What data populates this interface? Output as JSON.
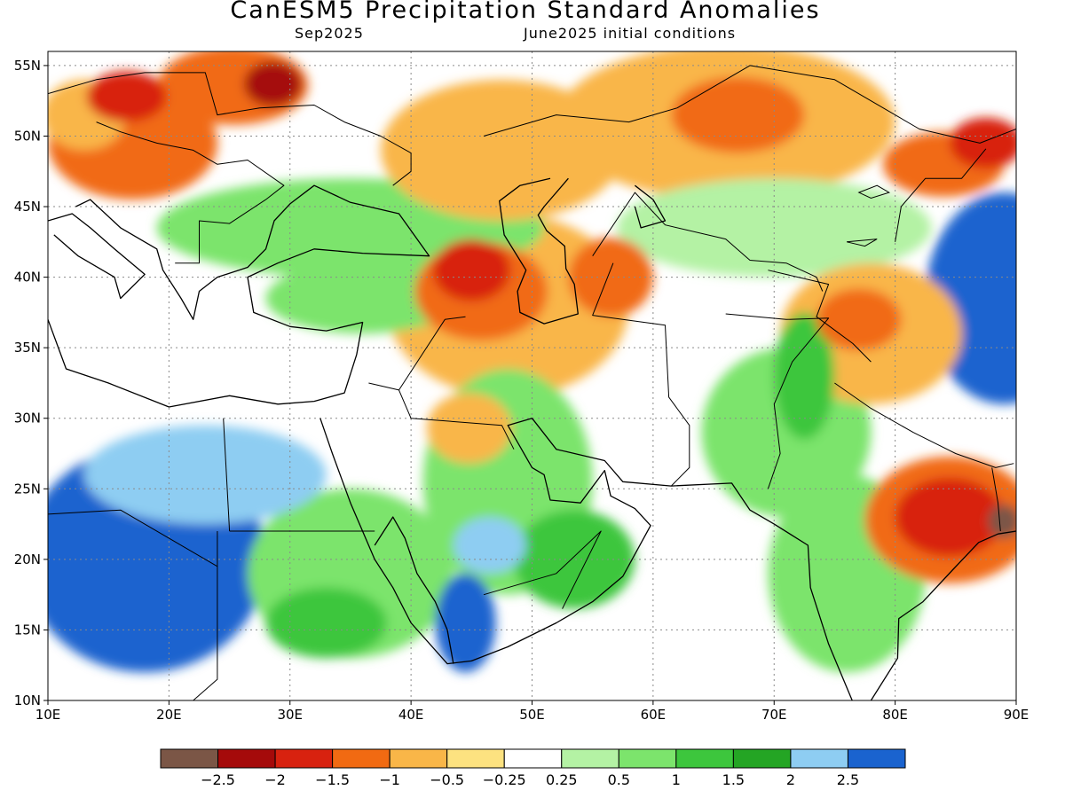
{
  "header": {
    "title": "CanESM5 Precipitation Standard Anomalies",
    "valid_month": "Sep2025",
    "init": "June2025 initial conditions"
  },
  "axes": {
    "lon_ticks": [
      "10E",
      "20E",
      "30E",
      "40E",
      "50E",
      "60E",
      "70E",
      "80E",
      "90E"
    ],
    "lat_ticks": [
      "10N",
      "15N",
      "20N",
      "25N",
      "30N",
      "35N",
      "40N",
      "45N",
      "50N",
      "55N"
    ],
    "lon_range": [
      10,
      90
    ],
    "lat_range": [
      10,
      56
    ]
  },
  "colorbar": {
    "labels": [
      "−2.5",
      "−2",
      "−1.5",
      "−1",
      "−0.5",
      "−0.25",
      "0.25",
      "0.5",
      "1",
      "1.5",
      "2",
      "2.5"
    ],
    "colors": [
      "#7b5646",
      "#a50a0a",
      "#d8220f",
      "#f16a12",
      "#f9b648",
      "#fde280",
      "#ffffff",
      "#b4f2a4",
      "#7ce46c",
      "#3dc63d",
      "#24a524",
      "#8ecdf2",
      "#1a63cf"
    ]
  },
  "map": {
    "anomaly_regions": [
      {
        "lon": 25.3,
        "lat": 53.6,
        "rx": 6.2,
        "ry": 2.8,
        "color": "#f16a12"
      },
      {
        "lon": 28.6,
        "lat": 53.7,
        "rx": 2.4,
        "ry": 1.6,
        "color": "#a50a0a"
      },
      {
        "lon": 16.5,
        "lat": 52.8,
        "rx": 3.3,
        "ry": 1.8,
        "color": "#d8220f"
      },
      {
        "lon": 17.0,
        "lat": 49.5,
        "rx": 7.0,
        "ry": 4.0,
        "color": "#f16a12"
      },
      {
        "lon": 13.0,
        "lat": 51.5,
        "rx": 3.5,
        "ry": 2.5,
        "color": "#f9b648"
      },
      {
        "lon": 45.0,
        "lat": 40.5,
        "rx": 3.2,
        "ry": 2.2,
        "color": "#d8220f"
      },
      {
        "lon": 45.8,
        "lat": 39.0,
        "rx": 5.5,
        "ry": 3.5,
        "color": "#f16a12"
      },
      {
        "lon": 48.0,
        "lat": 38.0,
        "rx": 10.0,
        "ry": 6.5,
        "color": "#f9b648"
      },
      {
        "lon": 56.5,
        "lat": 40.0,
        "rx": 3.5,
        "ry": 2.8,
        "color": "#f16a12"
      },
      {
        "lon": 44.8,
        "lat": 29.3,
        "rx": 3.5,
        "ry": 2.5,
        "color": "#f9b648"
      },
      {
        "lon": 67.0,
        "lat": 51.5,
        "rx": 5.5,
        "ry": 2.7,
        "color": "#f16a12"
      },
      {
        "lon": 66.0,
        "lat": 51.0,
        "rx": 14.0,
        "ry": 5.5,
        "color": "#f9b648"
      },
      {
        "lon": 84.0,
        "lat": 48.0,
        "rx": 5.0,
        "ry": 2.3,
        "color": "#f16a12"
      },
      {
        "lon": 87.5,
        "lat": 49.5,
        "rx": 3.0,
        "ry": 1.8,
        "color": "#d8220f"
      },
      {
        "lon": 77.0,
        "lat": 37.0,
        "rx": 3.5,
        "ry": 2.2,
        "color": "#f16a12"
      },
      {
        "lon": 78.0,
        "lat": 36.0,
        "rx": 7.5,
        "ry": 5.0,
        "color": "#f9b648"
      },
      {
        "lon": 84.5,
        "lat": 23.0,
        "rx": 4.5,
        "ry": 2.8,
        "color": "#d8220f"
      },
      {
        "lon": 84.5,
        "lat": 22.8,
        "rx": 7.0,
        "ry": 4.5,
        "color": "#f16a12"
      },
      {
        "lon": 89.0,
        "lat": 22.7,
        "rx": 1.3,
        "ry": 1.2,
        "color": "#7b5646"
      },
      {
        "lon": 47.5,
        "lat": 49.0,
        "rx": 10.0,
        "ry": 5.0,
        "color": "#f9b648"
      },
      {
        "lon": 18.0,
        "lat": 20.0,
        "rx": 10.0,
        "ry": 8.0,
        "color": "#1a63cf"
      },
      {
        "lon": 89.0,
        "lat": 38.5,
        "rx": 6.5,
        "ry": 7.5,
        "color": "#1a63cf"
      },
      {
        "lon": 23.0,
        "lat": 26.0,
        "rx": 10.0,
        "ry": 3.5,
        "color": "#8ecdf2"
      },
      {
        "lon": 44.5,
        "lat": 15.5,
        "rx": 2.5,
        "ry": 3.5,
        "color": "#1a63cf"
      },
      {
        "lon": 46.5,
        "lat": 21.0,
        "rx": 3.0,
        "ry": 2.0,
        "color": "#8ecdf2"
      },
      {
        "lon": 35.0,
        "lat": 43.5,
        "rx": 16.0,
        "ry": 3.5,
        "color": "#7ce46c"
      },
      {
        "lon": 36.0,
        "lat": 38.5,
        "rx": 8.0,
        "ry": 2.5,
        "color": "#7ce46c"
      },
      {
        "lon": 48.0,
        "lat": 25.5,
        "rx": 7.0,
        "ry": 8.0,
        "color": "#7ce46c"
      },
      {
        "lon": 35.0,
        "lat": 19.0,
        "rx": 8.5,
        "ry": 6.0,
        "color": "#7ce46c"
      },
      {
        "lon": 71.0,
        "lat": 29.0,
        "rx": 7.0,
        "ry": 6.0,
        "color": "#7ce46c"
      },
      {
        "lon": 76.0,
        "lat": 19.0,
        "rx": 6.5,
        "ry": 7.0,
        "color": "#7ce46c"
      },
      {
        "lon": 70.0,
        "lat": 43.5,
        "rx": 13.0,
        "ry": 3.5,
        "color": "#b4f2a4"
      },
      {
        "lon": 53.5,
        "lat": 20.0,
        "rx": 5.0,
        "ry": 3.5,
        "color": "#3dc63d"
      },
      {
        "lon": 33.0,
        "lat": 15.5,
        "rx": 5.0,
        "ry": 2.5,
        "color": "#3dc63d"
      },
      {
        "lon": 72.5,
        "lat": 33.0,
        "rx": 2.5,
        "ry": 4.5,
        "color": "#3dc63d"
      }
    ],
    "coastlines": [
      [
        [
          10,
          44
        ],
        [
          12,
          44.5
        ],
        [
          13.5,
          43.5
        ],
        [
          15.5,
          42
        ],
        [
          18,
          40.2
        ],
        [
          16,
          38.5
        ],
        [
          15.5,
          40
        ],
        [
          12.5,
          41.5
        ],
        [
          10.5,
          43
        ]
      ],
      [
        [
          10,
          37
        ],
        [
          11.5,
          33.5
        ],
        [
          15,
          32.5
        ],
        [
          20,
          30.8
        ],
        [
          25,
          31.6
        ],
        [
          29,
          31
        ],
        [
          32,
          31.2
        ],
        [
          34.5,
          31.8
        ],
        [
          35.5,
          34.5
        ],
        [
          36,
          36.8
        ],
        [
          33,
          36.2
        ],
        [
          30,
          36.5
        ],
        [
          27,
          37.5
        ],
        [
          26.5,
          40
        ],
        [
          29,
          41
        ],
        [
          32,
          42
        ],
        [
          36,
          41.7
        ],
        [
          41.5,
          41.5
        ],
        [
          39,
          44.5
        ],
        [
          35,
          45.3
        ],
        [
          32,
          46.5
        ],
        [
          30,
          45.2
        ],
        [
          28.7,
          44
        ],
        [
          28,
          42
        ],
        [
          26.5,
          40.7
        ],
        [
          24,
          40
        ],
        [
          22.5,
          39
        ],
        [
          22,
          37
        ],
        [
          21,
          38.5
        ],
        [
          19.5,
          40.5
        ],
        [
          19,
          42
        ],
        [
          16,
          43.5
        ],
        [
          13.5,
          45.5
        ],
        [
          12.3,
          45
        ]
      ],
      [
        [
          32.5,
          30
        ],
        [
          33.5,
          27.5
        ],
        [
          35,
          24
        ],
        [
          37,
          20
        ],
        [
          38.5,
          18
        ],
        [
          40,
          15.5
        ],
        [
          43,
          12.6
        ],
        [
          45,
          12.8
        ],
        [
          48,
          13.8
        ],
        [
          52,
          15.5
        ],
        [
          55,
          17
        ],
        [
          57.5,
          18.8
        ],
        [
          59.8,
          22.4
        ],
        [
          58.5,
          23.6
        ],
        [
          56.5,
          24.5
        ],
        [
          56,
          26.3
        ],
        [
          54,
          24
        ],
        [
          51.5,
          24.2
        ],
        [
          51,
          26
        ],
        [
          50,
          26.5
        ],
        [
          49,
          28
        ],
        [
          48,
          29.5
        ],
        [
          50,
          30
        ],
        [
          52,
          27.8
        ],
        [
          56,
          27
        ],
        [
          57.5,
          25.5
        ],
        [
          61.5,
          25.2
        ],
        [
          66.5,
          25.4
        ],
        [
          68,
          23.5
        ],
        [
          70,
          22.5
        ],
        [
          72.8,
          21
        ],
        [
          73,
          18
        ],
        [
          74.5,
          14
        ],
        [
          76.5,
          9.9
        ]
      ],
      [
        [
          37,
          21
        ],
        [
          38.5,
          23
        ],
        [
          39.5,
          21.5
        ],
        [
          40.5,
          19
        ],
        [
          42,
          17
        ],
        [
          43,
          15
        ],
        [
          43.5,
          12.6
        ]
      ],
      [
        [
          78,
          10
        ],
        [
          80.2,
          13
        ],
        [
          80.3,
          15.8
        ],
        [
          82.3,
          17
        ],
        [
          84.8,
          19.3
        ],
        [
          86.9,
          21.2
        ],
        [
          88.5,
          21.8
        ],
        [
          90,
          22
        ]
      ],
      [
        [
          53,
          47
        ],
        [
          51,
          45
        ],
        [
          50.5,
          44.4
        ],
        [
          51.2,
          43.3
        ],
        [
          52.7,
          42.2
        ],
        [
          52.8,
          40.6
        ],
        [
          53.5,
          39.5
        ],
        [
          53.8,
          37.4
        ],
        [
          51,
          36.7
        ],
        [
          49,
          37.5
        ],
        [
          48.8,
          39
        ],
        [
          49.5,
          40.5
        ],
        [
          47.7,
          43
        ],
        [
          47.3,
          45.4
        ],
        [
          49,
          46.5
        ],
        [
          51.5,
          47
        ]
      ],
      [
        [
          58.5,
          46.5
        ],
        [
          60,
          45.5
        ],
        [
          61,
          44
        ],
        [
          59,
          43.5
        ],
        [
          58.5,
          45
        ]
      ]
    ],
    "borders": [
      [
        [
          10,
          23.2
        ],
        [
          16,
          23.5
        ],
        [
          24,
          19.5
        ],
        [
          24,
          22
        ]
      ],
      [
        [
          24,
          19.5
        ],
        [
          24,
          11.5
        ],
        [
          22,
          10
        ]
      ],
      [
        [
          25,
          22
        ],
        [
          31.5,
          22
        ],
        [
          37,
          22
        ]
      ],
      [
        [
          24.5,
          30
        ],
        [
          25,
          22
        ]
      ],
      [
        [
          36.5,
          32.5
        ],
        [
          39,
          32
        ],
        [
          42.8,
          37
        ],
        [
          44.5,
          37.2
        ]
      ],
      [
        [
          39,
          32
        ],
        [
          40,
          30
        ],
        [
          47.5,
          29.5
        ],
        [
          48.5,
          27.8
        ]
      ],
      [
        [
          46,
          17.5
        ],
        [
          52,
          19
        ],
        [
          55.7,
          22
        ],
        [
          52.5,
          16.5
        ]
      ],
      [
        [
          56.7,
          41
        ],
        [
          55,
          37.3
        ],
        [
          61,
          36.6
        ],
        [
          61.3,
          31.5
        ],
        [
          63,
          29.5
        ],
        [
          63,
          26.5
        ],
        [
          61.5,
          25.2
        ]
      ],
      [
        [
          66,
          37.4
        ],
        [
          71,
          37
        ],
        [
          74.5,
          37.1
        ],
        [
          71.5,
          34
        ],
        [
          70,
          31
        ],
        [
          70.5,
          27.5
        ],
        [
          69.5,
          25
        ]
      ],
      [
        [
          75,
          32.5
        ],
        [
          78,
          30.7
        ],
        [
          81.5,
          29
        ],
        [
          85,
          27.5
        ],
        [
          88.3,
          26.5
        ],
        [
          89.8,
          26.8
        ]
      ],
      [
        [
          88,
          26.5
        ],
        [
          88.5,
          24
        ],
        [
          88.7,
          22
        ]
      ],
      [
        [
          55,
          41.5
        ],
        [
          58.5,
          46
        ],
        [
          61,
          43.7
        ],
        [
          66,
          42.7
        ],
        [
          68,
          41.2
        ],
        [
          71,
          41
        ],
        [
          73.5,
          40
        ],
        [
          74,
          39
        ]
      ],
      [
        [
          69.5,
          40.5
        ],
        [
          74.5,
          39.5
        ],
        [
          73.5,
          37.2
        ],
        [
          76.5,
          35.3
        ],
        [
          78,
          34
        ]
      ],
      [
        [
          80,
          42.5
        ],
        [
          80.5,
          45
        ],
        [
          82.5,
          47
        ],
        [
          85.5,
          47
        ],
        [
          87.5,
          49.1
        ]
      ],
      [
        [
          10,
          53
        ],
        [
          14,
          54
        ],
        [
          18,
          54.5
        ],
        [
          23,
          54.5
        ],
        [
          24,
          51.5
        ],
        [
          27.5,
          52
        ],
        [
          32,
          52.2
        ],
        [
          34.5,
          51
        ],
        [
          37.5,
          50
        ],
        [
          40,
          48.8
        ],
        [
          40,
          47.5
        ],
        [
          38.5,
          46.5
        ]
      ],
      [
        [
          14,
          51
        ],
        [
          16,
          50.3
        ],
        [
          19,
          49.5
        ],
        [
          22,
          49
        ],
        [
          24,
          48
        ],
        [
          26.5,
          48.3
        ],
        [
          29.5,
          46.5
        ],
        [
          28,
          45.5
        ],
        [
          25,
          43.8
        ],
        [
          22.5,
          44
        ],
        [
          22.5,
          41
        ],
        [
          20.5,
          41
        ]
      ],
      [
        [
          46,
          50
        ],
        [
          52,
          51.5
        ],
        [
          58,
          51
        ],
        [
          62,
          52
        ],
        [
          68,
          55
        ],
        [
          75,
          54
        ],
        [
          82,
          50.5
        ],
        [
          87,
          49.5
        ],
        [
          90,
          50.5
        ]
      ]
    ],
    "lakes": [
      [
        [
          77,
          46
        ],
        [
          78.5,
          46.5
        ],
        [
          79.5,
          46
        ],
        [
          78,
          45.6
        ]
      ],
      [
        [
          76,
          42.5
        ],
        [
          78.5,
          42.7
        ],
        [
          77.5,
          42.2
        ]
      ]
    ]
  }
}
